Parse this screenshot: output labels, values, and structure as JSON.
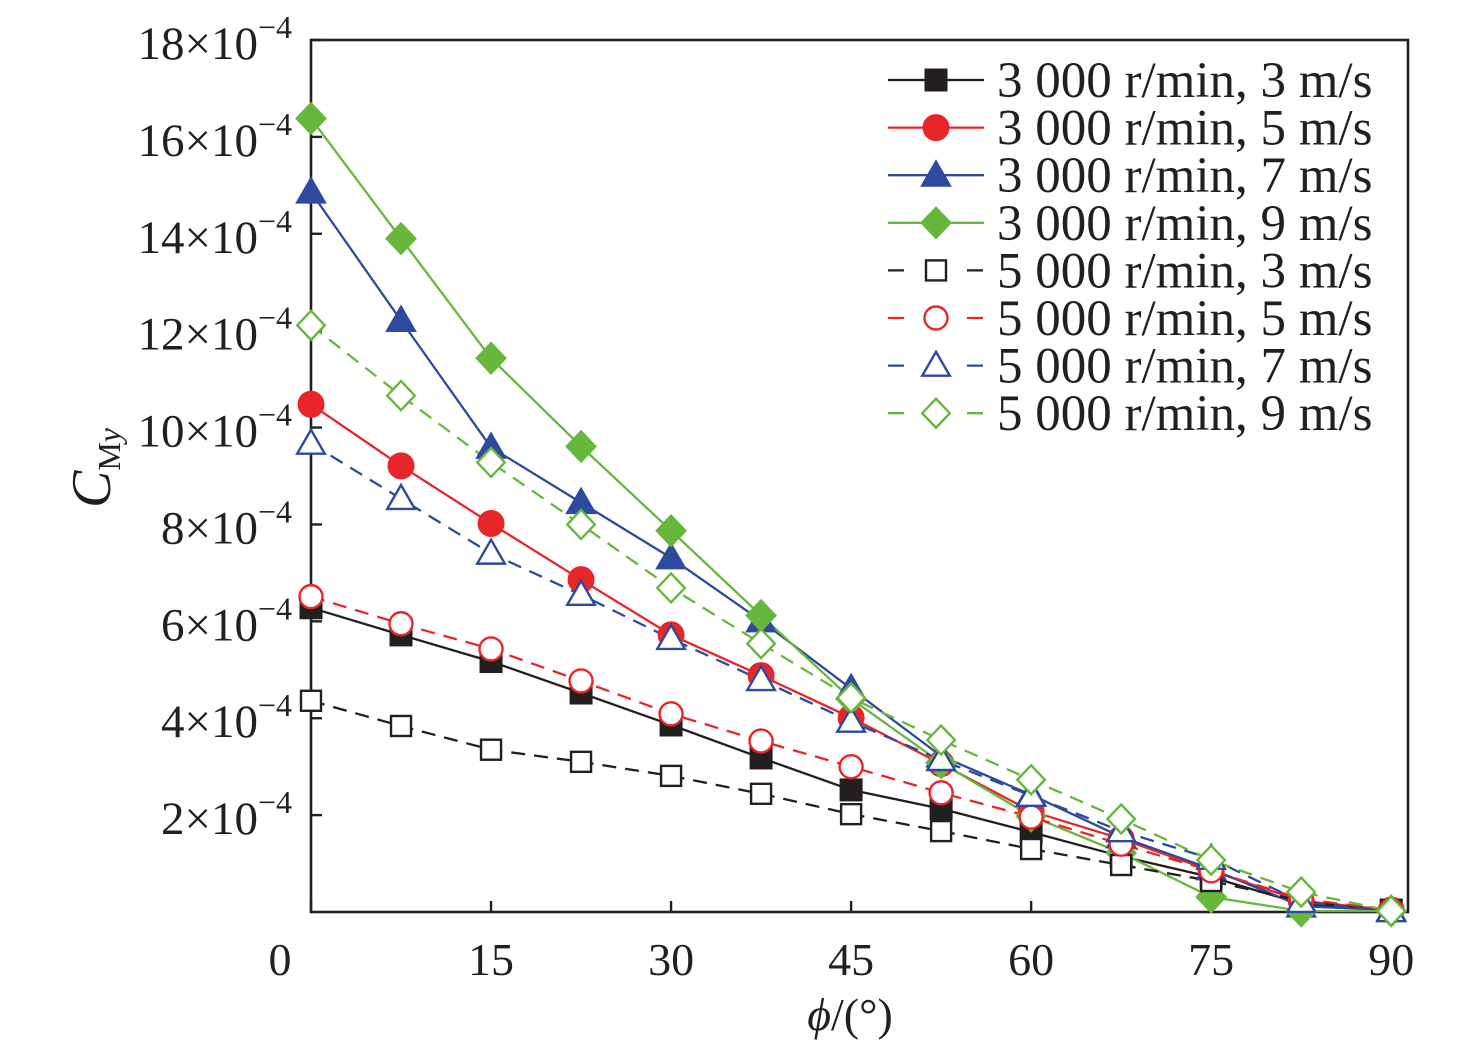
{
  "chart_data": {
    "type": "line",
    "title": "",
    "xlabel": {
      "symbol": "ϕ",
      "unit": "/(°)"
    },
    "ylabel": {
      "symbol": "C",
      "sub_upright": "M",
      "sub_italic": "y"
    },
    "xlim": [
      0,
      91.4
    ],
    "ylim": [
      0,
      0.0018
    ],
    "grid": false,
    "legend_position": "top-right",
    "axis_color": "#231f20",
    "xticks": [
      {
        "value": 0,
        "label": "0"
      },
      {
        "value": 15,
        "label": "15"
      },
      {
        "value": 30,
        "label": "30"
      },
      {
        "value": 45,
        "label": "45"
      },
      {
        "value": 60,
        "label": "60"
      },
      {
        "value": 75,
        "label": "75"
      },
      {
        "value": 90,
        "label": "90"
      }
    ],
    "yticks": [
      {
        "value": 0.0002,
        "mantissa": "2×10",
        "exponent": "−4"
      },
      {
        "value": 0.0004,
        "mantissa": "4×10",
        "exponent": "−4"
      },
      {
        "value": 0.0006,
        "mantissa": "6×10",
        "exponent": "−4"
      },
      {
        "value": 0.0008,
        "mantissa": "8×10",
        "exponent": "−4"
      },
      {
        "value": 0.001,
        "mantissa": "10×10",
        "exponent": "−4"
      },
      {
        "value": 0.0012,
        "mantissa": "12×10",
        "exponent": "−4"
      },
      {
        "value": 0.0014,
        "mantissa": "14×10",
        "exponent": "−4"
      },
      {
        "value": 0.0016,
        "mantissa": "16×10",
        "exponent": "−4"
      },
      {
        "value": 0.0018,
        "mantissa": "18×10",
        "exponent": "−4"
      }
    ],
    "x": [
      0,
      7.5,
      15,
      22.5,
      30,
      37.5,
      45,
      52.5,
      60,
      67.5,
      75,
      82.5,
      90
    ],
    "series": [
      {
        "name": "3 000 r/min, 3 m/s",
        "color": "#231f20",
        "marker": "square",
        "filled": true,
        "linestyle": "solid",
        "values": [
          0.000628,
          0.000572,
          0.000517,
          0.000452,
          0.000386,
          0.000318,
          0.000252,
          0.000213,
          0.000165,
          0.000115,
          7.2e-05,
          1.7e-05,
          4e-06
        ]
      },
      {
        "name": "3 000 r/min, 5 m/s",
        "color": "#e8262a",
        "marker": "circle",
        "filled": true,
        "linestyle": "solid",
        "values": [
          0.001048,
          0.000921,
          0.000802,
          0.000686,
          0.000572,
          0.000488,
          0.000401,
          0.000306,
          0.000208,
          0.000151,
          8.5e-05,
          2.3e-05,
          4e-06
        ]
      },
      {
        "name": "3 000 r/min, 7 m/s",
        "color": "#2e4a9e",
        "marker": "triangle",
        "filled": true,
        "linestyle": "solid",
        "values": [
          0.001486,
          0.001221,
          0.000959,
          0.000845,
          0.000731,
          0.000601,
          0.000461,
          0.000322,
          0.000242,
          0.000155,
          8.9e-05,
          1.2e-05,
          4e-06
        ]
      },
      {
        "name": "3 000 r/min, 9 m/s",
        "color": "#67b73d",
        "marker": "diamond",
        "filled": true,
        "linestyle": "solid",
        "values": [
          0.001638,
          0.00139,
          0.001143,
          0.000961,
          0.000787,
          0.000612,
          0.00044,
          0.000308,
          0.000198,
          0.000122,
          3.1e-05,
          2e-06,
          2e-06
        ]
      },
      {
        "name": "5 000 r/min, 3 m/s",
        "color": "#231f20",
        "marker": "square",
        "filled": false,
        "linestyle": "dashed",
        "values": [
          0.000436,
          0.000384,
          0.000335,
          0.00031,
          0.000281,
          0.000244,
          0.000202,
          0.000167,
          0.00013,
          9.7e-05,
          6.4e-05,
          2.3e-05,
          4e-06
        ]
      },
      {
        "name": "5 000 r/min, 5 m/s",
        "color": "#e8262a",
        "marker": "circle",
        "filled": false,
        "linestyle": "dashed",
        "values": [
          0.000651,
          0.000595,
          0.000543,
          0.000477,
          0.000409,
          0.000353,
          0.0003,
          0.000246,
          0.000196,
          0.00014,
          8.5e-05,
          2.7e-05,
          4e-06
        ]
      },
      {
        "name": "5 000 r/min, 7 m/s",
        "color": "#2e4a9e",
        "marker": "triangle",
        "filled": false,
        "linestyle": "dashed",
        "values": [
          0.000967,
          0.000853,
          0.00074,
          0.000655,
          0.000564,
          0.000479,
          0.000393,
          0.000314,
          0.00024,
          0.000167,
          0.00011,
          2.1e-05,
          2e-06
        ]
      },
      {
        "name": "5 000 r/min, 9 m/s",
        "color": "#67b73d",
        "marker": "diamond",
        "filled": false,
        "linestyle": "dashed",
        "values": [
          0.001211,
          0.001066,
          0.000928,
          0.0008,
          0.000669,
          0.000554,
          0.000442,
          0.000355,
          0.000273,
          0.000192,
          0.000107,
          4.1e-05,
          2e-06
        ]
      }
    ]
  }
}
